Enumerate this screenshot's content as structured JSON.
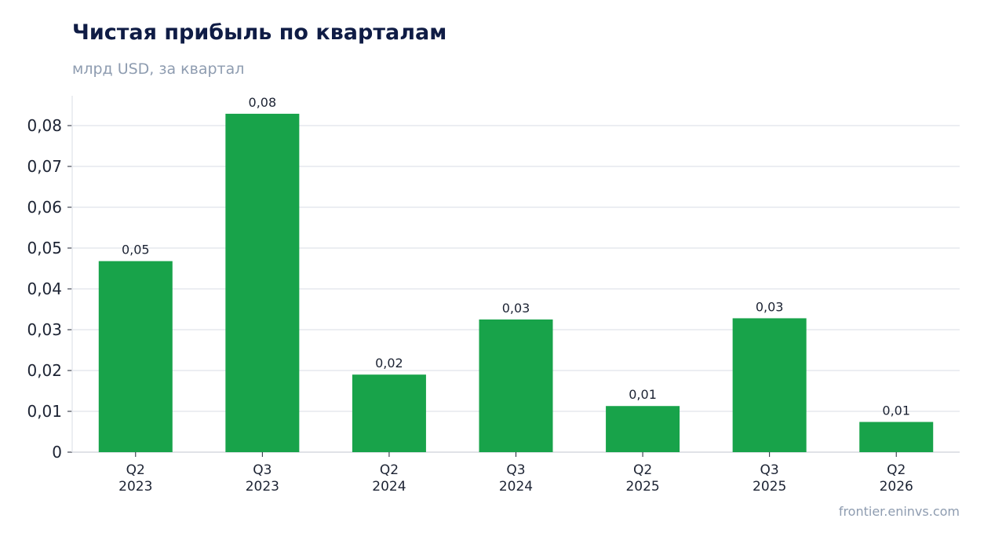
{
  "chart_data": {
    "type": "bar",
    "title": "Чистая прибыль по кварталам",
    "subtitle": "млрд USD, за квартал",
    "categories": [
      [
        "Q2",
        "2023"
      ],
      [
        "Q3",
        "2023"
      ],
      [
        "Q2",
        "2024"
      ],
      [
        "Q3",
        "2024"
      ],
      [
        "Q2",
        "2025"
      ],
      [
        "Q3",
        "2025"
      ],
      [
        "Q2",
        "2026"
      ]
    ],
    "values": [
      0.0468,
      0.0829,
      0.019,
      0.0325,
      0.0113,
      0.0328,
      0.0074
    ],
    "data_labels": [
      "0,05",
      "0,08",
      "0,02",
      "0,03",
      "0,01",
      "0,03",
      "0,01"
    ],
    "yticks": [
      0,
      0.01,
      0.02,
      0.03,
      0.04,
      0.05,
      0.06,
      0.07,
      0.08
    ],
    "ytick_labels": [
      "0",
      "0,01",
      "0,02",
      "0,03",
      "0,04",
      "0,05",
      "0,06",
      "0,07",
      "0,08"
    ],
    "ylim": [
      0,
      0.087
    ],
    "grid": true,
    "bar_color": "#18a34a",
    "grid_color": "#e6e9ee",
    "source": "frontier.eninvs.com"
  }
}
